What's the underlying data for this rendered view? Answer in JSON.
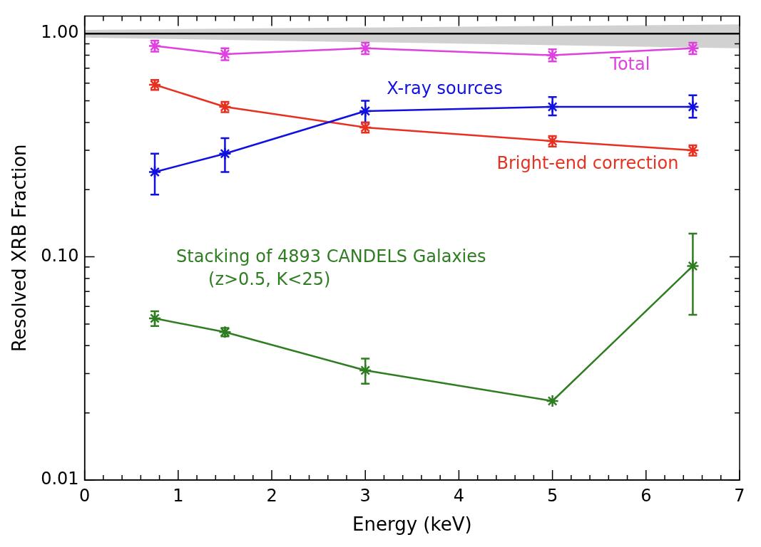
{
  "chart_data": {
    "type": "line",
    "xlabel": "Energy (keV)",
    "ylabel": "Resolved XRB Fraction",
    "log": "y",
    "xlim": [
      0,
      7
    ],
    "ylim": [
      0.01,
      1.2
    ],
    "xticks": [
      0,
      {
        "value": 0.2,
        "label": null
      },
      {
        "value": 0.4,
        "label": null
      },
      {
        "value": 0.6,
        "label": null
      },
      {
        "value": 0.8,
        "label": null
      },
      1,
      {
        "value": 1.2,
        "label": null
      },
      {
        "value": 1.4,
        "label": null
      },
      {
        "value": 1.6,
        "label": null
      },
      {
        "value": 1.8,
        "label": null
      },
      2,
      {
        "value": 2.2,
        "label": null
      },
      {
        "value": 2.4,
        "label": null
      },
      {
        "value": 2.6,
        "label": null
      },
      {
        "value": 2.8,
        "label": null
      },
      3,
      {
        "value": 3.2,
        "label": null
      },
      {
        "value": 3.4,
        "label": null
      },
      {
        "value": 3.6,
        "label": null
      },
      {
        "value": 3.8,
        "label": null
      },
      4,
      {
        "value": 4.2,
        "label": null
      },
      {
        "value": 4.4,
        "label": null
      },
      {
        "value": 4.6,
        "label": null
      },
      {
        "value": 4.8,
        "label": null
      },
      5,
      {
        "value": 5.2,
        "label": null
      },
      {
        "value": 5.4,
        "label": null
      },
      {
        "value": 5.6,
        "label": null
      },
      {
        "value": 5.8,
        "label": null
      },
      6,
      {
        "value": 6.2,
        "label": null
      },
      {
        "value": 6.4,
        "label": null
      },
      {
        "value": 6.6,
        "label": null
      },
      {
        "value": 6.8,
        "label": null
      },
      7
    ],
    "yticks": [
      {
        "value": 0.01,
        "label": "0.01"
      },
      {
        "value": 0.02,
        "label": null
      },
      {
        "value": 0.03,
        "label": null
      },
      {
        "value": 0.04,
        "label": null
      },
      {
        "value": 0.05,
        "label": null
      },
      {
        "value": 0.06,
        "label": null
      },
      {
        "value": 0.07,
        "label": null
      },
      {
        "value": 0.08,
        "label": null
      },
      {
        "value": 0.09,
        "label": null
      },
      {
        "value": 0.1,
        "label": "0.10"
      },
      {
        "value": 0.2,
        "label": null
      },
      {
        "value": 0.3,
        "label": null
      },
      {
        "value": 0.4,
        "label": null
      },
      {
        "value": 0.5,
        "label": null
      },
      {
        "value": 0.6,
        "label": null
      },
      {
        "value": 0.7,
        "label": null
      },
      {
        "value": 0.8,
        "label": null
      },
      {
        "value": 0.9,
        "label": null
      },
      {
        "value": 1,
        "label": "1.00"
      }
    ],
    "marker": "cross",
    "grid": false,
    "legend": false,
    "series": [
      {
        "color": "#000000",
        "x": [
          0,
          7
        ],
        "values": [
          1,
          1
        ],
        "lower": [
          0.96,
          0.86
        ],
        "upper": [
          1.04,
          1.1
        ],
        "marker": "none"
      },
      {
        "name": "Total",
        "color": "#e040e0",
        "x": [
          0.75,
          1.5,
          3,
          5,
          6.5
        ],
        "values": [
          0.88,
          0.81,
          0.86,
          0.8,
          0.86
        ],
        "errors": [
          0.05,
          0.05,
          0.05,
          0.05,
          0.05
        ]
      },
      {
        "name": "X-ray sources",
        "color": "#1010e0",
        "x": [
          0.75,
          1.5,
          3,
          5,
          6.5
        ],
        "values": [
          0.24,
          0.29,
          0.45,
          0.47,
          0.47
        ],
        "errors": [
          [
            0.19,
            0.29
          ],
          [
            0.24,
            0.34
          ],
          [
            0.4,
            0.5
          ],
          [
            0.43,
            0.52
          ],
          [
            0.42,
            0.53
          ]
        ]
      },
      {
        "name": "Bright-end correction",
        "color": "#e83020",
        "x": [
          0.75,
          1.5,
          3,
          5,
          6.5
        ],
        "values": [
          0.59,
          0.47,
          0.38,
          0.33,
          0.3
        ],
        "errors": [
          0.03,
          0.025,
          0.02,
          0.018,
          0.016
        ]
      },
      {
        "name": "Stacking of 4893 CANDELS Galaxies\n(z>0.5, K<25)",
        "color": "#2e7d20",
        "x": [
          0.75,
          1.5,
          3,
          5,
          6.5
        ],
        "values": [
          0.053,
          0.046,
          0.031,
          0.0226,
          0.091
        ],
        "errors": [
          [
            0.049,
            0.057
          ],
          [
            0.044,
            0.048
          ],
          [
            0.027,
            0.035
          ],
          null,
          [
            0.055,
            0.127
          ]
        ]
      }
    ]
  }
}
